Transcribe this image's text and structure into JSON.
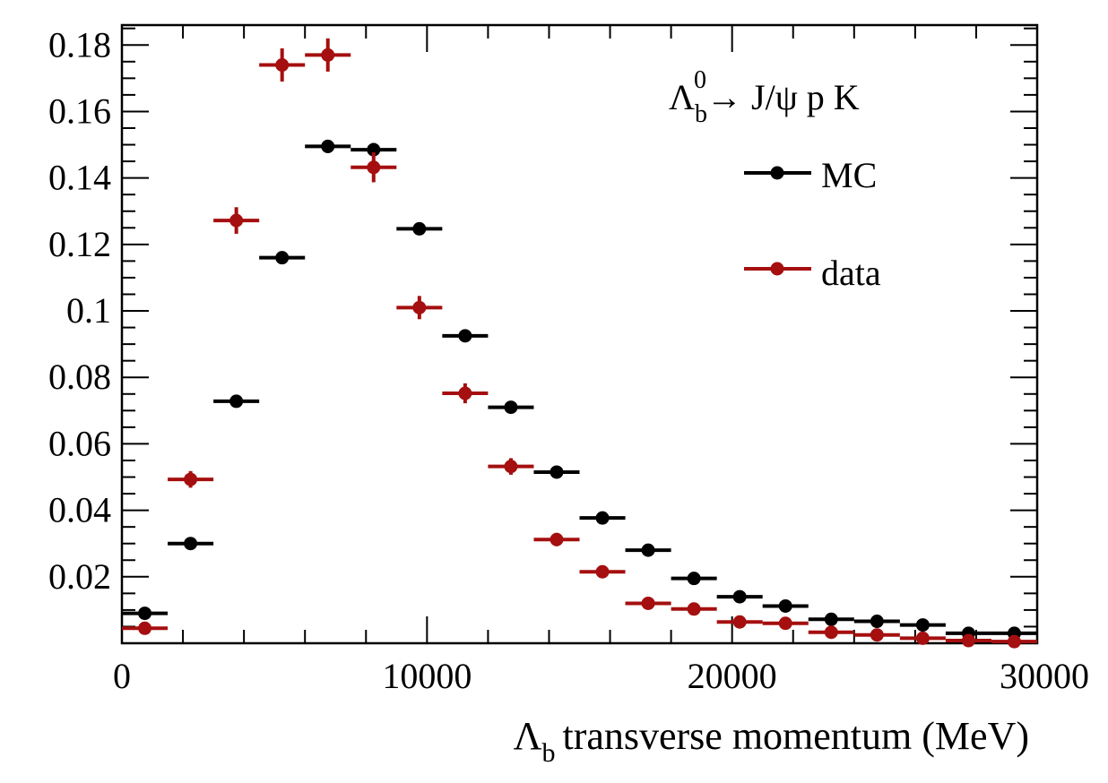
{
  "chart_data": {
    "type": "scatter",
    "title": "",
    "xlabel": "transverse momentum (MeV)",
    "xlabel_symbol": "Λ",
    "xlabel_subscript": "b",
    "ylabel": "",
    "xlim": [
      0,
      30000
    ],
    "ylim": [
      0,
      0.186
    ],
    "xticks": [
      "0",
      "10000",
      "20000",
      "30000"
    ],
    "yticks": [
      "0.02",
      "0.04",
      "0.06",
      "0.08",
      "0.1",
      "0.12",
      "0.14",
      "0.16",
      "0.18"
    ],
    "xtick_values": [
      0,
      10000,
      20000,
      30000
    ],
    "ytick_values": [
      0.02,
      0.04,
      0.06,
      0.08,
      0.1,
      0.12,
      0.14,
      0.16,
      0.18
    ],
    "grid": false,
    "legend_position": "top-right",
    "annotation": {
      "symbol": "Λ",
      "subscript": "b",
      "superscript": "0",
      "text": "→ J/ψ p K"
    },
    "bin_width": 1500,
    "series": [
      {
        "name": "MC",
        "color": "#000000",
        "x": [
          750,
          2250,
          3750,
          5250,
          6750,
          8250,
          9750,
          11250,
          12750,
          14250,
          15750,
          17250,
          18750,
          20250,
          21750,
          23250,
          24750,
          26250,
          27750,
          29250
        ],
        "y": [
          0.009,
          0.03,
          0.0728,
          0.116,
          0.1495,
          0.1485,
          0.1247,
          0.0925,
          0.071,
          0.0515,
          0.0377,
          0.028,
          0.0195,
          0.014,
          0.0112,
          0.0072,
          0.0066,
          0.0055,
          0.003,
          0.003
        ],
        "yerr": [
          0.0005,
          0.0008,
          0.0012,
          0.0015,
          0.002,
          0.002,
          0.0015,
          0.0012,
          0.001,
          0.0008,
          0.0007,
          0.0006,
          0.0005,
          0.0005,
          0.0004,
          0.0004,
          0.0004,
          0.0003,
          0.0003,
          0.0003
        ]
      },
      {
        "name": "data",
        "color": "#a50f0f",
        "x": [
          750,
          2250,
          3750,
          5250,
          6750,
          8250,
          9750,
          11250,
          12750,
          14250,
          15750,
          17250,
          18750,
          20250,
          21750,
          23250,
          24750,
          26250,
          27750,
          29250
        ],
        "y": [
          0.0045,
          0.0493,
          0.1272,
          0.174,
          0.177,
          0.1432,
          0.101,
          0.0752,
          0.0532,
          0.0312,
          0.0215,
          0.012,
          0.0103,
          0.0064,
          0.006,
          0.0033,
          0.0025,
          0.0015,
          0.0008,
          0.0005
        ],
        "yerr": [
          0.001,
          0.0025,
          0.004,
          0.005,
          0.005,
          0.0045,
          0.0035,
          0.003,
          0.0025,
          0.002,
          0.0015,
          0.0012,
          0.001,
          0.0008,
          0.0008,
          0.0006,
          0.0005,
          0.0004,
          0.0003,
          0.0003
        ]
      }
    ]
  }
}
